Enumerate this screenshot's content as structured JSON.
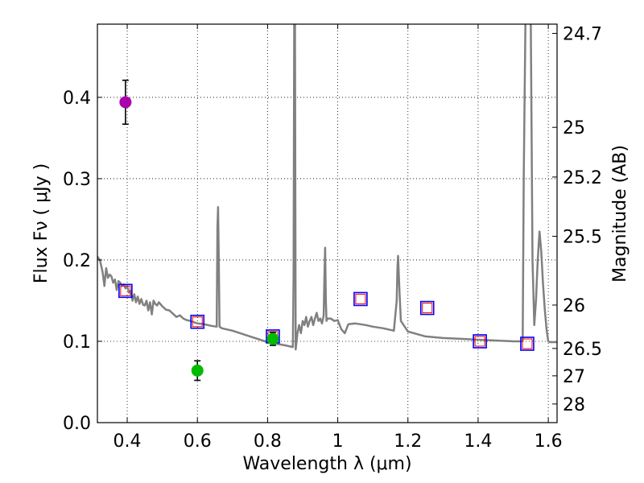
{
  "chart_data": {
    "type": "scatter",
    "title": "",
    "xlabel": "Wavelength  λ (μm)",
    "ylabel": "Flux  Fν  ( μJy )",
    "y2label": "Magnitude (AB)",
    "xlim": [
      0.315,
      1.625
    ],
    "ylim": [
      0.0,
      0.49
    ],
    "xticks": [
      0.4,
      0.6,
      0.8,
      1.0,
      1.2,
      1.4,
      1.6
    ],
    "xtick_labels": [
      "0.4",
      "0.6",
      "0.8",
      "1",
      "1.2",
      "1.4",
      "1.6"
    ],
    "yticks": [
      0.0,
      0.1,
      0.2,
      0.3,
      0.4
    ],
    "ytick_labels": [
      "0.0",
      "0.1",
      "0.2",
      "0.3",
      "0.4"
    ],
    "y2ticks": [
      24.7,
      25,
      25.2,
      25.5,
      26,
      26.5,
      27,
      28
    ],
    "y2tick_labels": [
      "24.7",
      "25",
      "25.2",
      "25.5",
      "26",
      "26.5",
      "27",
      "28"
    ],
    "grid": true,
    "colors": {
      "template": "#808080",
      "model_box_outer": "#0000ff",
      "model_box_inner": "#ff0000",
      "obs_purple": "#aa00aa",
      "obs_green": "#00bb00",
      "errorbar": "#000000"
    },
    "series": [
      {
        "kind": "line",
        "x": [
          0.315,
          0.322,
          0.33,
          0.335,
          0.34,
          0.345,
          0.35,
          0.355,
          0.36,
          0.365,
          0.37,
          0.375,
          0.38,
          0.385,
          0.39,
          0.395,
          0.4,
          0.405,
          0.41,
          0.415,
          0.42,
          0.425,
          0.43,
          0.435,
          0.44,
          0.445,
          0.45,
          0.455,
          0.46,
          0.465,
          0.47,
          0.475,
          0.48,
          0.485,
          0.49,
          0.5,
          0.51,
          0.52,
          0.53,
          0.54,
          0.55,
          0.56,
          0.57,
          0.58,
          0.6,
          0.62,
          0.64,
          0.655,
          0.657,
          0.659,
          0.661,
          0.663,
          0.67,
          0.7,
          0.75,
          0.8,
          0.85,
          0.872,
          0.874,
          0.876,
          0.878,
          0.88,
          0.885,
          0.89,
          0.895,
          0.9,
          0.905,
          0.91,
          0.915,
          0.92,
          0.925,
          0.93,
          0.935,
          0.94,
          0.945,
          0.95,
          0.955,
          0.96,
          0.962,
          0.964,
          0.966,
          0.968,
          0.97,
          0.98,
          0.99,
          1.0,
          1.01,
          1.02,
          1.03,
          1.05,
          1.08,
          1.1,
          1.13,
          1.16,
          1.168,
          1.17,
          1.172,
          1.176,
          1.18,
          1.2,
          1.25,
          1.3,
          1.35,
          1.4,
          1.45,
          1.5,
          1.525,
          1.527,
          1.53,
          1.535,
          1.54,
          1.545,
          1.55,
          1.555,
          1.56,
          1.565,
          1.57,
          1.575,
          1.58,
          1.585,
          1.59,
          1.595,
          1.6,
          1.605,
          1.61,
          1.625
        ],
        "y": [
          0.204,
          0.2,
          0.185,
          0.168,
          0.19,
          0.178,
          0.182,
          0.18,
          0.172,
          0.176,
          0.163,
          0.174,
          0.172,
          0.168,
          0.17,
          0.165,
          0.168,
          0.16,
          0.162,
          0.15,
          0.158,
          0.148,
          0.155,
          0.146,
          0.152,
          0.145,
          0.144,
          0.15,
          0.138,
          0.148,
          0.133,
          0.15,
          0.146,
          0.144,
          0.148,
          0.143,
          0.139,
          0.138,
          0.134,
          0.13,
          0.132,
          0.128,
          0.126,
          0.125,
          0.122,
          0.121,
          0.119,
          0.118,
          0.24,
          0.265,
          0.2,
          0.118,
          0.116,
          0.113,
          0.106,
          0.099,
          0.095,
          0.093,
          0.18,
          0.5,
          0.5,
          0.09,
          0.11,
          0.12,
          0.11,
          0.125,
          0.12,
          0.13,
          0.118,
          0.125,
          0.13,
          0.12,
          0.128,
          0.135,
          0.125,
          0.128,
          0.122,
          0.132,
          0.18,
          0.215,
          0.15,
          0.125,
          0.128,
          0.128,
          0.125,
          0.126,
          0.115,
          0.11,
          0.121,
          0.122,
          0.12,
          0.118,
          0.116,
          0.113,
          0.15,
          0.19,
          0.205,
          0.16,
          0.125,
          0.112,
          0.106,
          0.104,
          0.103,
          0.102,
          0.101,
          0.1,
          0.1,
          0.1,
          0.3,
          0.5,
          0.5,
          0.5,
          0.5,
          0.2,
          0.12,
          0.15,
          0.2,
          0.235,
          0.21,
          0.17,
          0.14,
          0.115,
          0.1,
          0.099,
          0.099,
          0.099
        ]
      },
      {
        "kind": "model_photometry",
        "x": [
          0.395,
          0.6,
          0.815,
          1.065,
          1.255,
          1.405,
          1.54
        ],
        "y": [
          0.162,
          0.124,
          0.106,
          0.152,
          0.141,
          0.1,
          0.097
        ]
      },
      {
        "kind": "observed_photometry",
        "x": [
          0.395,
          0.6,
          0.815
        ],
        "y": [
          0.394,
          0.064,
          0.103
        ],
        "yerr": [
          0.027,
          0.012,
          0.008
        ],
        "colors": [
          "#aa00aa",
          "#00bb00",
          "#00bb00"
        ]
      }
    ]
  }
}
